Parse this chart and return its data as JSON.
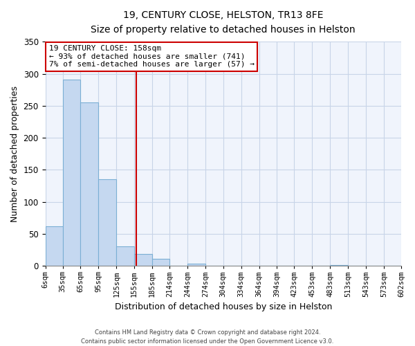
{
  "title": "19, CENTURY CLOSE, HELSTON, TR13 8FE",
  "subtitle": "Size of property relative to detached houses in Helston",
  "xlabel": "Distribution of detached houses by size in Helston",
  "ylabel": "Number of detached properties",
  "bin_edges": [
    6,
    35,
    65,
    95,
    125,
    155,
    185,
    214,
    244,
    274,
    304,
    334,
    364,
    394,
    423,
    453,
    483,
    513,
    543,
    573,
    602
  ],
  "bin_labels": [
    "6sqm",
    "35sqm",
    "65sqm",
    "95sqm",
    "125sqm",
    "155sqm",
    "185sqm",
    "214sqm",
    "244sqm",
    "274sqm",
    "304sqm",
    "334sqm",
    "364sqm",
    "394sqm",
    "423sqm",
    "453sqm",
    "483sqm",
    "513sqm",
    "543sqm",
    "573sqm",
    "602sqm"
  ],
  "counts": [
    62,
    291,
    255,
    135,
    30,
    19,
    11,
    0,
    3,
    0,
    0,
    0,
    0,
    0,
    0,
    0,
    1,
    0,
    0,
    0
  ],
  "bar_color": "#c5d8f0",
  "bar_edge_color": "#7bafd4",
  "property_line_x": 158,
  "property_line_color": "#cc0000",
  "ylim": [
    0,
    350
  ],
  "annotation_line1": "19 CENTURY CLOSE: 158sqm",
  "annotation_line2": "← 93% of detached houses are smaller (741)",
  "annotation_line3": "7% of semi-detached houses are larger (57) →",
  "annotation_box_color": "white",
  "annotation_box_edge_color": "#cc0000",
  "footer_line1": "Contains HM Land Registry data © Crown copyright and database right 2024.",
  "footer_line2": "Contains public sector information licensed under the Open Government Licence v3.0.",
  "bg_color": "#f0f4fc",
  "grid_color": "#c8d4e8"
}
